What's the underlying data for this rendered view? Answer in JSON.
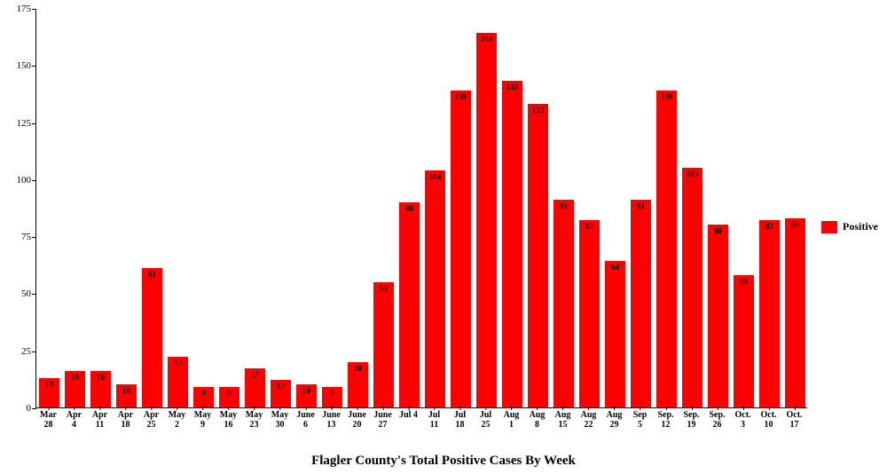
{
  "chart": {
    "type": "bar",
    "x_title": "Flagler County's Total Positive Cases By Week",
    "ylim": [
      0,
      175
    ],
    "ytick_step": 25,
    "yticks": [
      0,
      25,
      50,
      75,
      100,
      125,
      150,
      175
    ],
    "bar_color": "#ff0000",
    "background_color": "#ffffff",
    "axis_color": "#000000",
    "bar_width_ratio": 0.8,
    "font_family": "Georgia, serif",
    "title_fontsize": 15,
    "tick_fontsize": 11,
    "bar_label_fontsize": 9,
    "legend": {
      "label": "Positive",
      "swatch_color": "#ff0000",
      "position": "right"
    },
    "categories": [
      {
        "line1": "Mar",
        "line2": "28"
      },
      {
        "line1": "Apr",
        "line2": "4"
      },
      {
        "line1": "Apr",
        "line2": "11"
      },
      {
        "line1": "Apr",
        "line2": "18"
      },
      {
        "line1": "Apr",
        "line2": "25"
      },
      {
        "line1": "May",
        "line2": "2"
      },
      {
        "line1": "May",
        "line2": "9"
      },
      {
        "line1": "May",
        "line2": "16"
      },
      {
        "line1": "May",
        "line2": "23"
      },
      {
        "line1": "May",
        "line2": "30"
      },
      {
        "line1": "June",
        "line2": "6"
      },
      {
        "line1": "June",
        "line2": "13"
      },
      {
        "line1": "June",
        "line2": "20"
      },
      {
        "line1": "June",
        "line2": "27"
      },
      {
        "line1": "Jul 4",
        "line2": ""
      },
      {
        "line1": "Jul",
        "line2": "11"
      },
      {
        "line1": "Jul",
        "line2": "18"
      },
      {
        "line1": "Jul",
        "line2": "25"
      },
      {
        "line1": "Aug",
        "line2": "1"
      },
      {
        "line1": "Aug",
        "line2": "8"
      },
      {
        "line1": "Aug",
        "line2": "15"
      },
      {
        "line1": "Aug",
        "line2": "22"
      },
      {
        "line1": "Aug",
        "line2": "29"
      },
      {
        "line1": "Sep",
        "line2": "5"
      },
      {
        "line1": "Sep.",
        "line2": "12"
      },
      {
        "line1": "Sep.",
        "line2": "19"
      },
      {
        "line1": "Sep.",
        "line2": "26"
      },
      {
        "line1": "Oct.",
        "line2": "3"
      },
      {
        "line1": "Oct.",
        "line2": "10"
      },
      {
        "line1": "Oct.",
        "line2": "17"
      }
    ],
    "values": [
      13,
      16,
      16,
      10,
      61,
      22,
      9,
      9,
      17,
      12,
      10,
      9,
      20,
      55,
      90,
      104,
      139,
      164,
      143,
      133,
      91,
      82,
      64,
      91,
      139,
      105,
      80,
      58,
      82,
      83
    ]
  }
}
